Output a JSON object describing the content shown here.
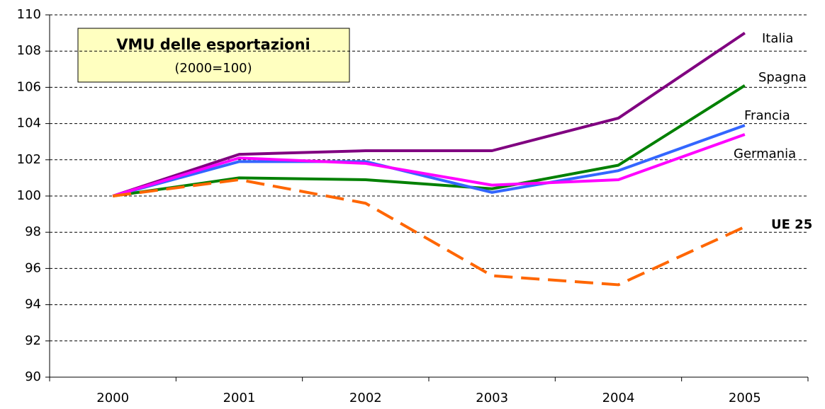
{
  "chart_data": {
    "type": "line",
    "title": "VMU delle esportazioni",
    "subtitle": "(2000=100)",
    "categories": [
      "2000",
      "2001",
      "2002",
      "2003",
      "2004",
      "2005"
    ],
    "series": [
      {
        "name": "Italia",
        "color": "#800080",
        "values": [
          100,
          102.3,
          102.5,
          102.5,
          104.3,
          109.0
        ]
      },
      {
        "name": "Spagna",
        "color": "#008000",
        "values": [
          100,
          101.0,
          100.9,
          100.4,
          101.7,
          106.1
        ]
      },
      {
        "name": "Francia",
        "color": "#3366ff",
        "values": [
          100,
          101.9,
          101.9,
          100.2,
          101.4,
          103.9
        ]
      },
      {
        "name": "Germania",
        "color": "#ff00ff",
        "values": [
          100,
          102.1,
          101.8,
          100.6,
          100.9,
          103.4
        ]
      },
      {
        "name": "UE 25",
        "color": "#ff6600",
        "dashed": true,
        "values": [
          100,
          100.9,
          99.6,
          95.6,
          95.1,
          98.3
        ]
      }
    ],
    "ylim": [
      90,
      110
    ],
    "yticks": [
      90,
      92,
      94,
      96,
      98,
      100,
      102,
      104,
      106,
      108,
      110
    ],
    "grid": true
  }
}
